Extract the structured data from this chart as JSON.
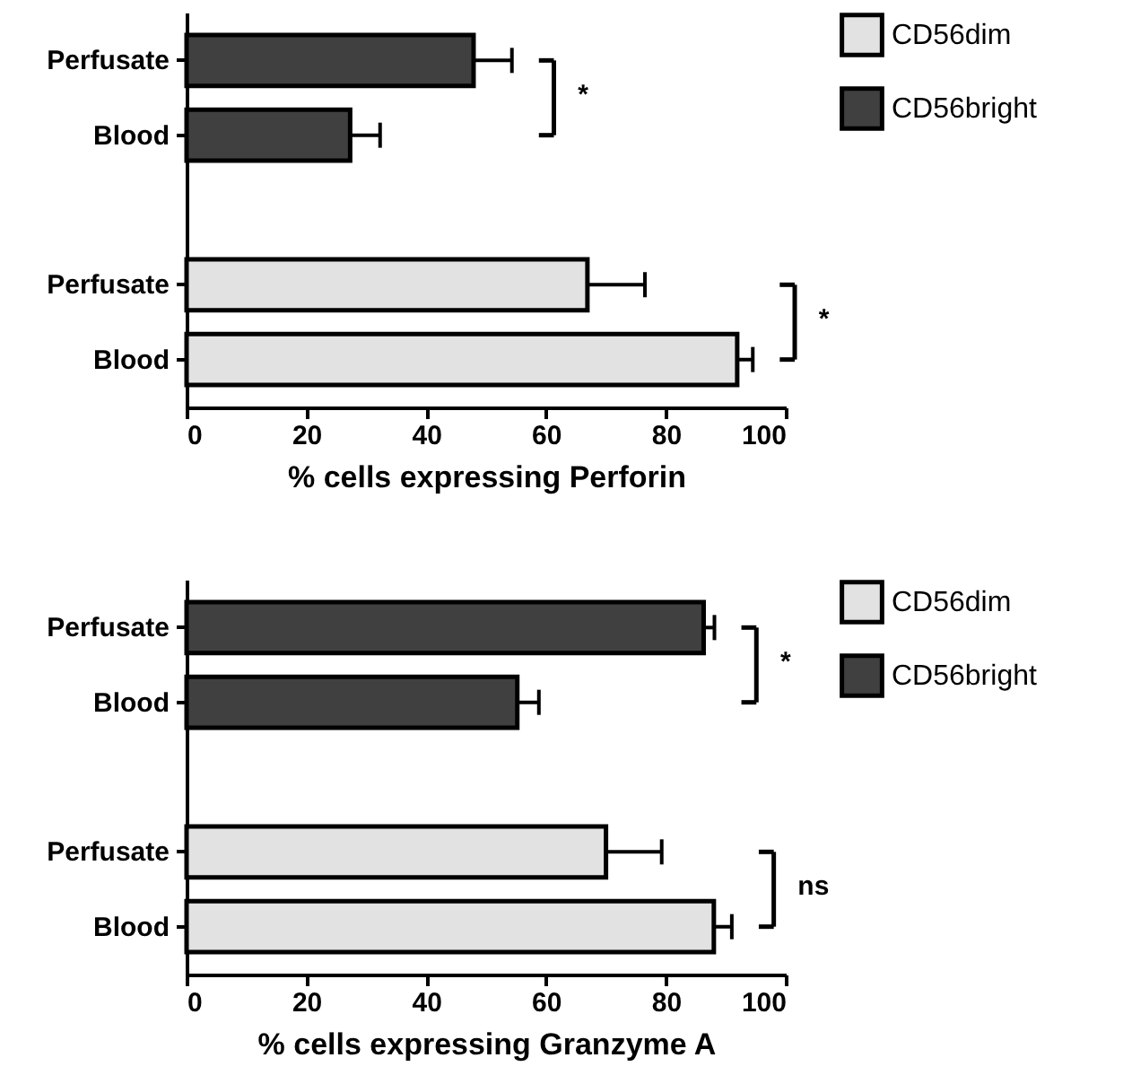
{
  "chart_data": [
    {
      "type": "bar",
      "orientation": "horizontal",
      "xlabel": "% cells expressing Perforin",
      "categories": [
        "Perfusate",
        "Blood",
        null,
        "Perfusate",
        "Blood"
      ],
      "xlim": [
        0,
        100
      ],
      "xticks": [
        0,
        20,
        40,
        60,
        80,
        100
      ],
      "legend": "top right",
      "grid": false,
      "series": [
        {
          "name": "CD56dim",
          "color": "#e2e2e2",
          "values": [
            null,
            null,
            null,
            66.9,
            91.9
          ],
          "errors": [
            null,
            null,
            null,
            9.6,
            2.6
          ]
        },
        {
          "name": "CD56bright",
          "color": "#404040",
          "values": [
            47.9,
            27.3,
            null,
            null,
            null
          ],
          "errors": [
            6.4,
            5,
            null,
            null,
            null
          ]
        }
      ],
      "annotations": [
        "*",
        "*"
      ]
    },
    {
      "type": "bar",
      "orientation": "horizontal",
      "xlabel": "% cells expressing Granzyme A",
      "categories": [
        "Perfusate",
        "Blood",
        null,
        "Perfusate",
        "Blood"
      ],
      "xlim": [
        0,
        100
      ],
      "xticks": [
        0,
        20,
        40,
        60,
        80,
        100
      ],
      "legend": "top right",
      "grid": false,
      "series": [
        {
          "name": "CD56dim",
          "color": "#e2e2e2",
          "values": [
            null,
            null,
            null,
            70.0,
            88.0
          ],
          "errors": [
            null,
            null,
            null,
            9.3,
            3
          ]
        },
        {
          "name": "CD56bright",
          "color": "#404040",
          "values": [
            86.3,
            55.2,
            null,
            null,
            null
          ],
          "errors": [
            1.8,
            3.6,
            null,
            null,
            null
          ]
        }
      ],
      "annotations": [
        "*",
        "ns"
      ]
    }
  ]
}
